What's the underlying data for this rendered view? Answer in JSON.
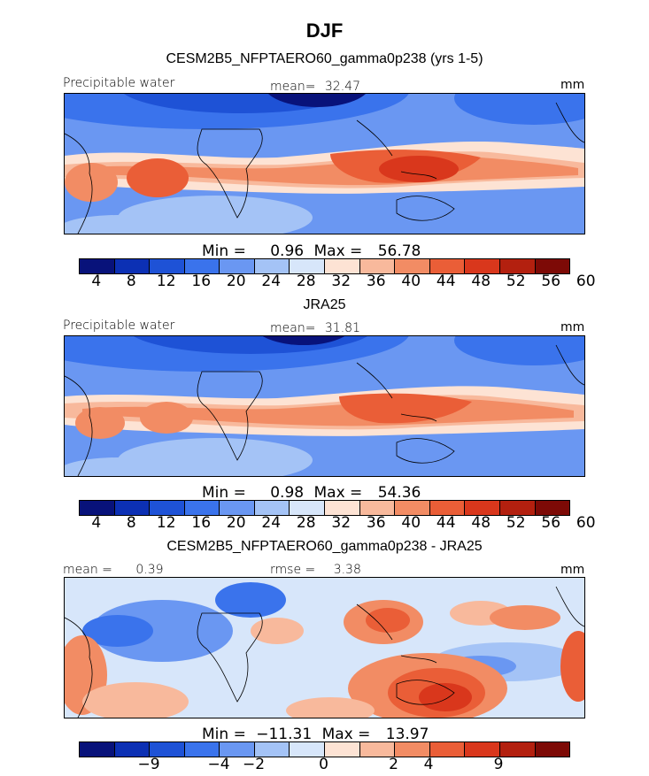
{
  "figure": {
    "title": "DJF"
  },
  "palette_abs": [
    "#08127a",
    "#0c30b4",
    "#1e52d6",
    "#3a73ec",
    "#6a97f2",
    "#a4c3f6",
    "#d7e6fa",
    "#fde3d4",
    "#f8b99c",
    "#f28c64",
    "#ea5e37",
    "#d9371c",
    "#b3200f",
    "#7d0a06"
  ],
  "palette_diff": [
    "#08127a",
    "#0c30b4",
    "#1e52d6",
    "#3a73ec",
    "#6a97f2",
    "#a4c3f6",
    "#d7e6fa",
    "#fde3d4",
    "#f8b99c",
    "#f28c64",
    "#ea5e37",
    "#d9371c",
    "#b3200f",
    "#7d0a06"
  ],
  "chart_data": [
    {
      "type": "heatmap",
      "title": "CESM2B5_NFPTAERO60_gamma0p238 (yrs 1-5)",
      "variable": "Precipitable water",
      "units": "mm",
      "mean_label": "mean=",
      "mean": "32.47",
      "min_label": "Min =",
      "min": "0.96",
      "max_label": "Max =",
      "max": "56.78",
      "colorbar_levels": [
        "4",
        "8",
        "12",
        "16",
        "20",
        "24",
        "28",
        "32",
        "36",
        "40",
        "44",
        "48",
        "52",
        "56",
        "60"
      ],
      "value_range": [
        0,
        64
      ]
    },
    {
      "type": "heatmap",
      "title": "JRA25",
      "variable": "Precipitable water",
      "units": "mm",
      "mean_label": "mean=",
      "mean": "31.81",
      "min_label": "Min =",
      "min": "0.98",
      "max_label": "Max =",
      "max": "54.36",
      "colorbar_levels": [
        "4",
        "8",
        "12",
        "16",
        "20",
        "24",
        "28",
        "32",
        "36",
        "40",
        "44",
        "48",
        "52",
        "56",
        "60"
      ],
      "value_range": [
        0,
        64
      ]
    },
    {
      "type": "heatmap",
      "title": "CESM2B5_NFPTAERO60_gamma0p238 - JRA25",
      "units": "mm",
      "mean_label": "mean =",
      "mean": "0.39",
      "rmse_label": "rmse =",
      "rmse": "3.38",
      "min_label": "Min =",
      "min": "−11.31",
      "max_label": "Max =",
      "max": "13.97",
      "colorbar_levels": [
        "−9",
        "−4",
        "−2",
        "0",
        "2",
        "4",
        "9"
      ],
      "value_range": [
        -14,
        14
      ]
    }
  ]
}
